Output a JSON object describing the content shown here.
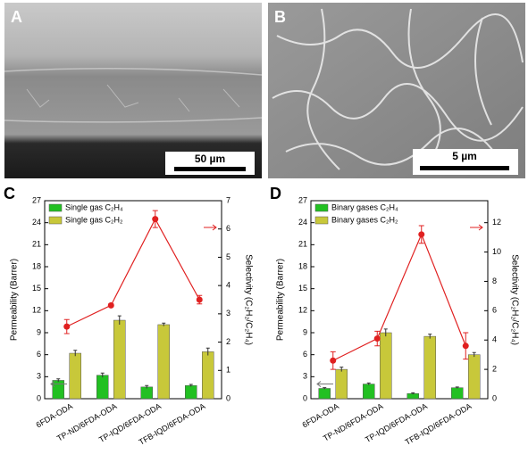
{
  "images": [
    {
      "label": "A",
      "scale_bar": "50 µm"
    },
    {
      "label": "B",
      "scale_bar": "5 µm"
    }
  ],
  "chart_data": [
    {
      "type": "bar",
      "label": "C",
      "categories": [
        "6FDA-ODA",
        "TP-ND/6FDA-ODA",
        "TP-IQD/6FDA-ODA",
        "TFB-IQD/6FDA-ODA"
      ],
      "ylabel": "Permeability (Barrer)",
      "y2label": "Selectivity (C₂H₂/C₂H₄)",
      "ylim": [
        0,
        27
      ],
      "yticks": [
        0,
        3,
        6,
        9,
        12,
        15,
        18,
        21,
        24,
        27
      ],
      "y2lim": [
        0,
        7
      ],
      "y2ticks": [
        0,
        1,
        2,
        3,
        4,
        5,
        6,
        7
      ],
      "series": [
        {
          "name": "Single gas C₂H₄",
          "color": "#22c022",
          "values": [
            2.5,
            3.2,
            1.6,
            1.8
          ],
          "errors": [
            0.2,
            0.3,
            0.2,
            0.15
          ]
        },
        {
          "name": "Single gas C₂H₂",
          "color": "#c8c83a",
          "values": [
            6.2,
            10.7,
            10.1,
            6.4
          ],
          "errors": [
            0.4,
            0.6,
            0.2,
            0.5
          ]
        },
        {
          "type": "line",
          "axis": "y2",
          "color": "#e02020",
          "values": [
            2.55,
            3.3,
            6.35,
            3.5
          ],
          "errors": [
            0.25,
            0.05,
            0.3,
            0.15
          ]
        }
      ]
    },
    {
      "type": "bar",
      "label": "D",
      "categories": [
        "6FDA-ODA",
        "TP-ND/6FDA-ODA",
        "TP-IQD/6FDA-ODA",
        "TFB-IQD/6FDA-ODA"
      ],
      "ylabel": "Permeability (Barrer)",
      "y2label": "Selectivity (C₂H₂/C₂H₄)",
      "ylim": [
        0,
        27
      ],
      "yticks": [
        0,
        3,
        6,
        9,
        12,
        15,
        18,
        21,
        24,
        27
      ],
      "y2lim": [
        0,
        13.5
      ],
      "y2ticks": [
        0,
        2,
        4,
        6,
        8,
        10,
        12
      ],
      "series": [
        {
          "name": "Binary gases C₂H₄",
          "color": "#22c022",
          "values": [
            1.4,
            2.0,
            0.7,
            1.5
          ],
          "errors": [
            0.1,
            0.15,
            0.1,
            0.1
          ]
        },
        {
          "name": "Binary gases C₂H₂",
          "color": "#c8c83a",
          "values": [
            4.0,
            9.0,
            8.5,
            6.0
          ],
          "errors": [
            0.3,
            0.5,
            0.3,
            0.3
          ]
        },
        {
          "type": "line",
          "axis": "y2",
          "color": "#e02020",
          "values": [
            2.6,
            4.1,
            11.2,
            3.6
          ],
          "errors": [
            0.6,
            0.5,
            0.6,
            0.9
          ]
        }
      ]
    }
  ]
}
